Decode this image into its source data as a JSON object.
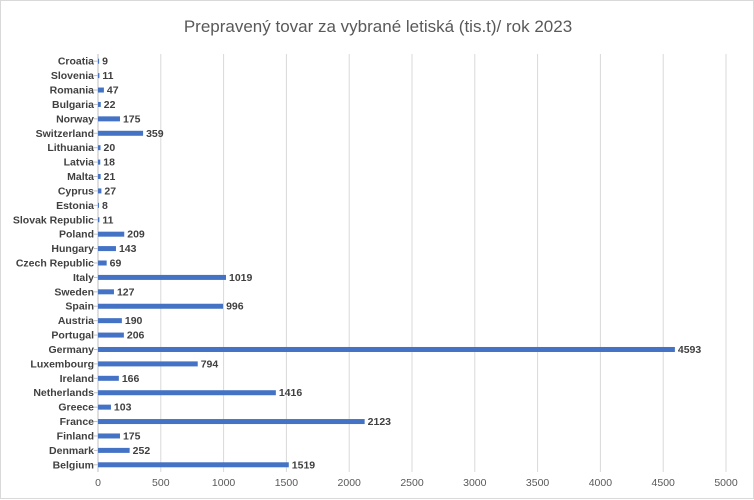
{
  "chart_data": {
    "type": "bar",
    "orientation": "horizontal",
    "title": "Prepravený tovar za vybrané letiská (tis.t)/ rok 2023",
    "xlabel": "",
    "ylabel": "",
    "xlim": [
      0,
      5000
    ],
    "x_ticks": [
      "0",
      "500",
      "1000",
      "1500",
      "2000",
      "2500",
      "3000",
      "3500",
      "4000",
      "4500",
      "5000"
    ],
    "grid": "vertical",
    "legend": "none",
    "bar_color": "#4472c4",
    "categories": [
      "Croatia",
      "Slovenia",
      "Romania",
      "Bulgaria",
      "Norway",
      "Switzerland",
      "Lithuania",
      "Latvia",
      "Malta",
      "Cyprus",
      "Estonia",
      "Slovak Republic",
      "Poland",
      "Hungary",
      "Czech Republic",
      "Italy",
      "Sweden",
      "Spain",
      "Austria",
      "Portugal",
      "Germany",
      "Luxembourg",
      "Ireland",
      "Netherlands",
      "Greece",
      "France",
      "Finland",
      "Denmark",
      "Belgium"
    ],
    "values": [
      9,
      11,
      47,
      22,
      175,
      359,
      20,
      18,
      21,
      27,
      8,
      11,
      209,
      143,
      69,
      1019,
      127,
      996,
      190,
      206,
      4593,
      794,
      166,
      1416,
      103,
      2123,
      175,
      252,
      1519
    ]
  }
}
